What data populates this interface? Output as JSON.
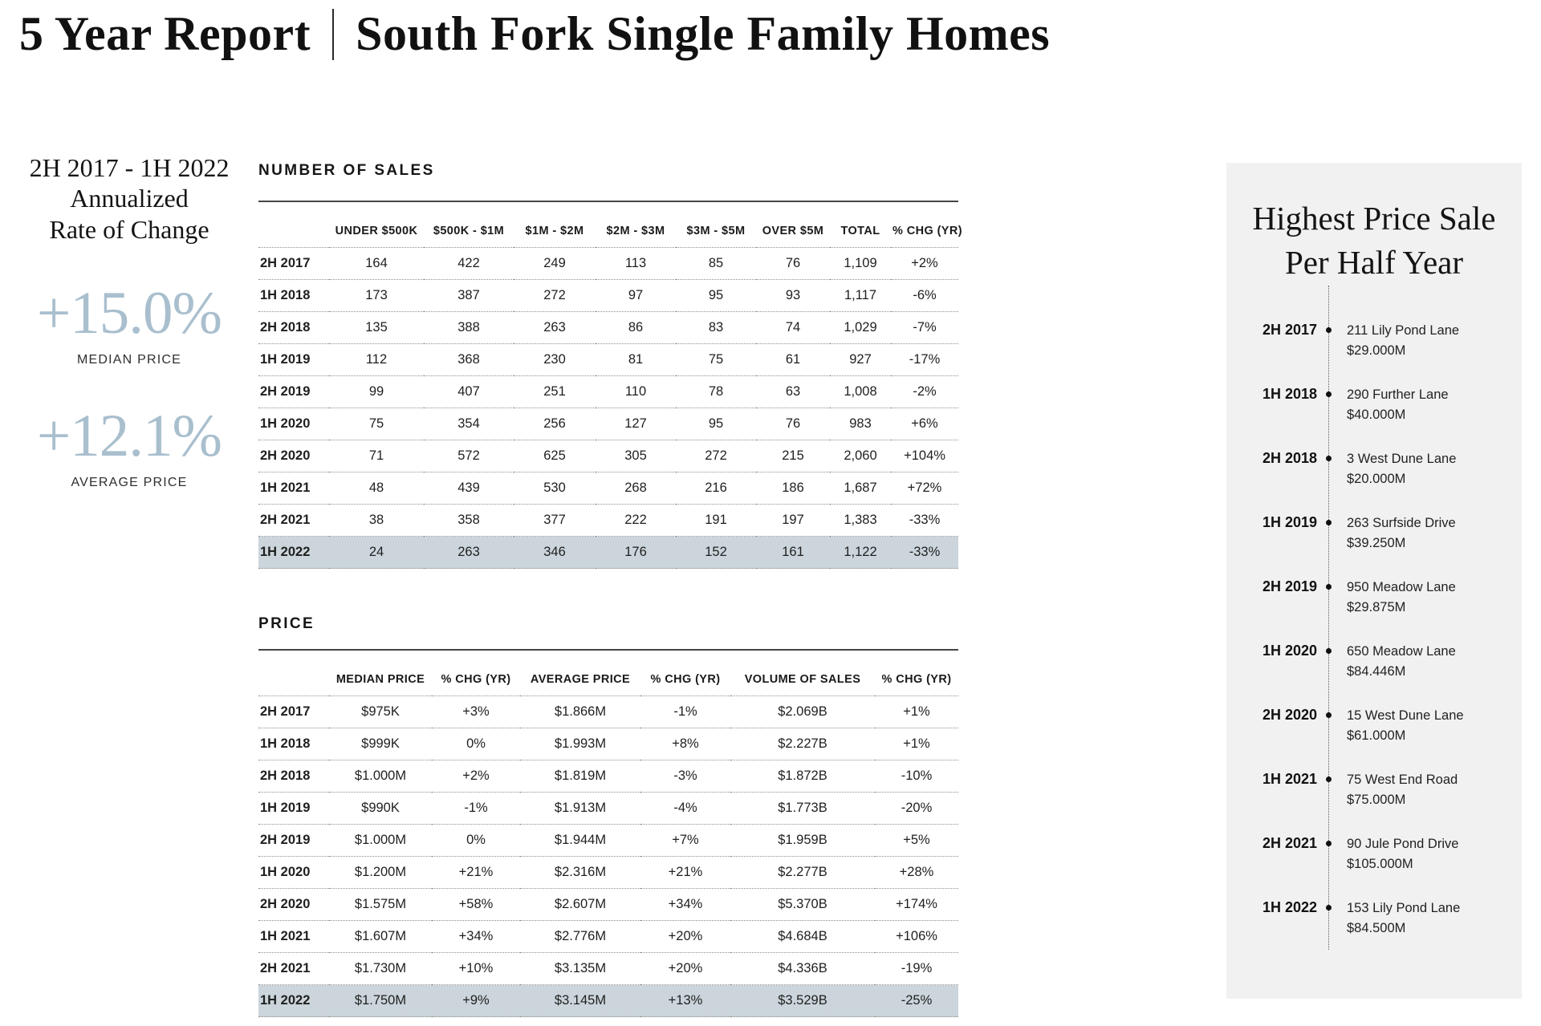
{
  "title": {
    "left": "5 Year Report",
    "right": "South Fork Single Family Homes"
  },
  "left_panel": {
    "range_title": "2H 2017 - 1H 2022\nAnnualized\nRate of Change",
    "stats": [
      {
        "value": "+15.0%",
        "label": "MEDIAN PRICE"
      },
      {
        "value": "+12.1%",
        "label": "AVERAGE PRICE"
      }
    ]
  },
  "sales_table": {
    "title": "NUMBER OF SALES",
    "columns": [
      "",
      "UNDER $500K",
      "$500K - $1M",
      "$1M - $2M",
      "$2M - $3M",
      "$3M - $5M",
      "OVER $5M",
      "TOTAL",
      "% CHG (YR)"
    ],
    "rows": [
      {
        "label": "2H 2017",
        "values": [
          "164",
          "422",
          "249",
          "113",
          "85",
          "76",
          "1,109",
          "+2%"
        ],
        "highlight": false
      },
      {
        "label": "1H 2018",
        "values": [
          "173",
          "387",
          "272",
          "97",
          "95",
          "93",
          "1,117",
          "-6%"
        ],
        "highlight": false
      },
      {
        "label": "2H 2018",
        "values": [
          "135",
          "388",
          "263",
          "86",
          "83",
          "74",
          "1,029",
          "-7%"
        ],
        "highlight": false
      },
      {
        "label": "1H 2019",
        "values": [
          "112",
          "368",
          "230",
          "81",
          "75",
          "61",
          "927",
          "-17%"
        ],
        "highlight": false
      },
      {
        "label": "2H 2019",
        "values": [
          "99",
          "407",
          "251",
          "110",
          "78",
          "63",
          "1,008",
          "-2%"
        ],
        "highlight": false
      },
      {
        "label": "1H 2020",
        "values": [
          "75",
          "354",
          "256",
          "127",
          "95",
          "76",
          "983",
          "+6%"
        ],
        "highlight": false
      },
      {
        "label": "2H 2020",
        "values": [
          "71",
          "572",
          "625",
          "305",
          "272",
          "215",
          "2,060",
          "+104%"
        ],
        "highlight": false
      },
      {
        "label": "1H 2021",
        "values": [
          "48",
          "439",
          "530",
          "268",
          "216",
          "186",
          "1,687",
          "+72%"
        ],
        "highlight": false
      },
      {
        "label": "2H 2021",
        "values": [
          "38",
          "358",
          "377",
          "222",
          "191",
          "197",
          "1,383",
          "-33%"
        ],
        "highlight": false
      },
      {
        "label": "1H 2022",
        "values": [
          "24",
          "263",
          "346",
          "176",
          "152",
          "161",
          "1,122",
          "-33%"
        ],
        "highlight": true
      }
    ]
  },
  "price_table": {
    "title": "PRICE",
    "columns": [
      "",
      "MEDIAN PRICE",
      "% CHG (YR)",
      "AVERAGE PRICE",
      "% CHG (YR)",
      "VOLUME OF SALES",
      "% CHG (YR)"
    ],
    "rows": [
      {
        "label": "2H 2017",
        "values": [
          "$975K",
          "+3%",
          "$1.866M",
          "-1%",
          "$2.069B",
          "+1%"
        ],
        "highlight": false
      },
      {
        "label": "1H 2018",
        "values": [
          "$999K",
          "0%",
          "$1.993M",
          "+8%",
          "$2.227B",
          "+1%"
        ],
        "highlight": false
      },
      {
        "label": "2H 2018",
        "values": [
          "$1.000M",
          "+2%",
          "$1.819M",
          "-3%",
          "$1.872B",
          "-10%"
        ],
        "highlight": false
      },
      {
        "label": "1H 2019",
        "values": [
          "$990K",
          "-1%",
          "$1.913M",
          "-4%",
          "$1.773B",
          "-20%"
        ],
        "highlight": false
      },
      {
        "label": "2H 2019",
        "values": [
          "$1.000M",
          "0%",
          "$1.944M",
          "+7%",
          "$1.959B",
          "+5%"
        ],
        "highlight": false
      },
      {
        "label": "1H 2020",
        "values": [
          "$1.200M",
          "+21%",
          "$2.316M",
          "+21%",
          "$2.277B",
          "+28%"
        ],
        "highlight": false
      },
      {
        "label": "2H 2020",
        "values": [
          "$1.575M",
          "+58%",
          "$2.607M",
          "+34%",
          "$5.370B",
          "+174%"
        ],
        "highlight": false
      },
      {
        "label": "1H 2021",
        "values": [
          "$1.607M",
          "+34%",
          "$2.776M",
          "+20%",
          "$4.684B",
          "+106%"
        ],
        "highlight": false
      },
      {
        "label": "2H 2021",
        "values": [
          "$1.730M",
          "+10%",
          "$3.135M",
          "+20%",
          "$4.336B",
          "-19%"
        ],
        "highlight": false
      },
      {
        "label": "1H 2022",
        "values": [
          "$1.750M",
          "+9%",
          "$3.145M",
          "+13%",
          "$3.529B",
          "-25%"
        ],
        "highlight": true
      }
    ]
  },
  "right_panel": {
    "title": "Highest Price Sale\nPer Half Year",
    "entries": [
      {
        "period": "2H 2017",
        "address": "211 Lily Pond Lane",
        "price": "$29.000M"
      },
      {
        "period": "1H 2018",
        "address": "290 Further Lane",
        "price": "$40.000M"
      },
      {
        "period": "2H 2018",
        "address": "3 West Dune Lane",
        "price": "$20.000M"
      },
      {
        "period": "1H 2019",
        "address": "263 Surfside Drive",
        "price": "$39.250M"
      },
      {
        "period": "2H 2019",
        "address": "950 Meadow Lane",
        "price": "$29.875M"
      },
      {
        "period": "1H 2020",
        "address": "650 Meadow Lane",
        "price": "$84.446M"
      },
      {
        "period": "2H 2020",
        "address": "15 West Dune Lane",
        "price": "$61.000M"
      },
      {
        "period": "1H 2021",
        "address": "75 West End Road",
        "price": "$75.000M"
      },
      {
        "period": "2H 2021",
        "address": "90 Jule Pond Drive",
        "price": "$105.000M"
      },
      {
        "period": "1H 2022",
        "address": "153 Lily Pond Lane",
        "price": "$84.500M"
      }
    ]
  },
  "colors": {
    "accent_stat": "#a9bfce",
    "highlight_row": "#cbd5db",
    "panel_background": "#f1f1f1",
    "text": "#1c1c1c"
  }
}
